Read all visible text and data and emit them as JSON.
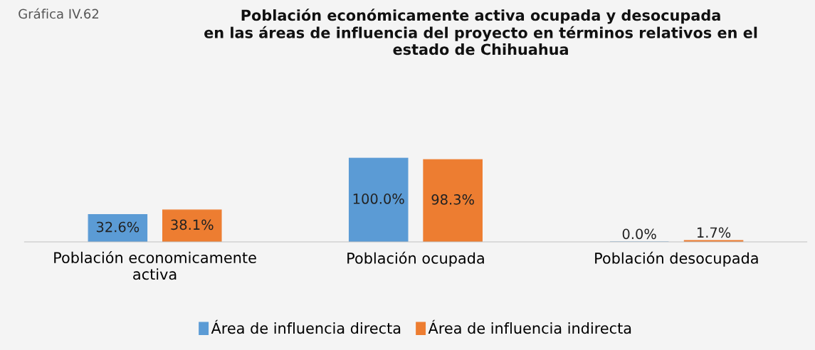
{
  "chart_data": {
    "type": "bar",
    "title": "Población económicamente activa ocupada y desocupada\nen las áreas de influencia del proyecto en términos relativos en el\nestado de Chihuahua",
    "annotations": [
      "Gráfica IV.62"
    ],
    "categories": [
      "Población economicamente\nactiva",
      "Población ocupada",
      "Población desocupada"
    ],
    "series": [
      {
        "name": "Área de influencia directa",
        "color": "#5b9bd5",
        "values": [
          32.6,
          100.0,
          0.0
        ],
        "value_labels": [
          "32.6%",
          "100.0%",
          "0.0%"
        ]
      },
      {
        "name": "Área de influencia indirecta",
        "color": "#ed7d31",
        "values": [
          38.1,
          98.3,
          1.7
        ],
        "value_labels": [
          "38.1%",
          "98.3%",
          "1.7%"
        ]
      }
    ],
    "legend": "bottom",
    "grid": false
  }
}
